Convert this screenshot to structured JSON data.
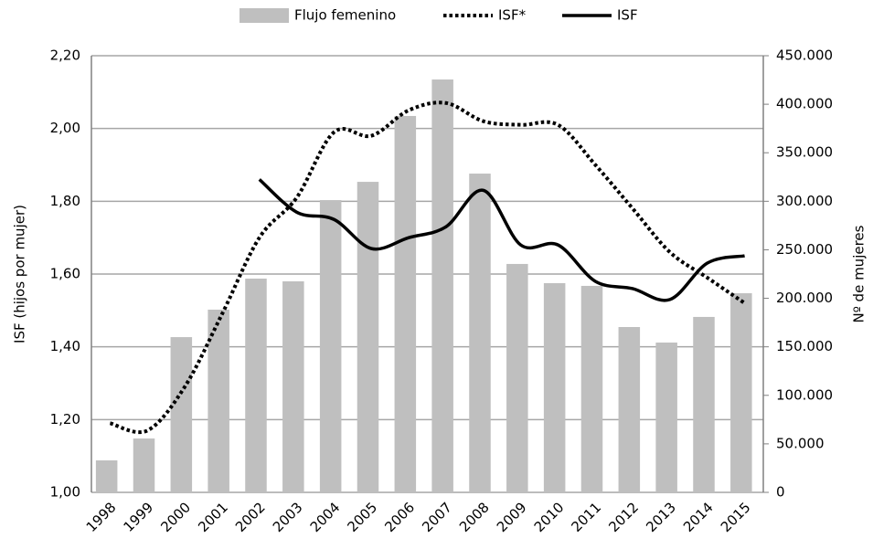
{
  "chart_data": {
    "type": "bar",
    "categories": [
      "1998",
      "1999",
      "2000",
      "2001",
      "2002",
      "2003",
      "2004",
      "2005",
      "2006",
      "2007",
      "2008",
      "2009",
      "2010",
      "2011",
      "2012",
      "2013",
      "2014",
      "2015"
    ],
    "series": [
      {
        "name": "Flujo femenino",
        "type": "bar",
        "axis": "y2",
        "color": "#bfbfbf",
        "values": [
          33000,
          55500,
          160000,
          188300,
          220300,
          217500,
          301200,
          320000,
          387900,
          425500,
          328500,
          235400,
          215600,
          212800,
          170400,
          154400,
          180800,
          205200
        ]
      },
      {
        "name": "ISF*",
        "type": "line",
        "dash": true,
        "axis": "y",
        "color": "#000000",
        "values": [
          1.19,
          1.17,
          1.29,
          1.49,
          1.7,
          1.81,
          1.99,
          1.98,
          2.05,
          2.07,
          2.02,
          2.01,
          2.01,
          1.9,
          1.78,
          1.66,
          1.59,
          1.52
        ]
      },
      {
        "name": "ISF",
        "type": "line",
        "dash": false,
        "axis": "y",
        "color": "#000000",
        "values": [
          null,
          null,
          null,
          null,
          1.86,
          1.77,
          1.75,
          1.67,
          1.7,
          1.73,
          1.83,
          1.68,
          1.68,
          1.58,
          1.56,
          1.53,
          1.63,
          1.65
        ]
      }
    ],
    "ylabel": "ISF (hijos por mujer)",
    "y2label": "Nº de mujeres",
    "ylim": [
      1.0,
      2.2
    ],
    "yticks": [
      {
        "value": 1.0,
        "label": "1,00"
      },
      {
        "value": 1.2,
        "label": "1,20"
      },
      {
        "value": 1.4,
        "label": "1,40"
      },
      {
        "value": 1.6,
        "label": "1,60"
      },
      {
        "value": 1.8,
        "label": "1,80"
      },
      {
        "value": 2.0,
        "label": "2,00"
      },
      {
        "value": 2.2,
        "label": "2,20"
      }
    ],
    "y2lim": [
      0,
      450000
    ],
    "y2ticks": [
      0,
      {
        "value": 50000,
        "label": "50.000"
      },
      {
        "value": 100000,
        "label": "100.000"
      },
      {
        "value": 150000,
        "label": "150.000"
      },
      {
        "value": 200000,
        "label": "200.000"
      },
      {
        "value": 250000,
        "label": "250.000"
      },
      {
        "value": 300000,
        "label": "300.000"
      },
      {
        "value": 350000,
        "label": "350.000"
      },
      {
        "value": 400000,
        "label": "400.000"
      },
      {
        "value": 450000,
        "label": "450.000"
      }
    ],
    "grid": true,
    "legend": "top"
  }
}
